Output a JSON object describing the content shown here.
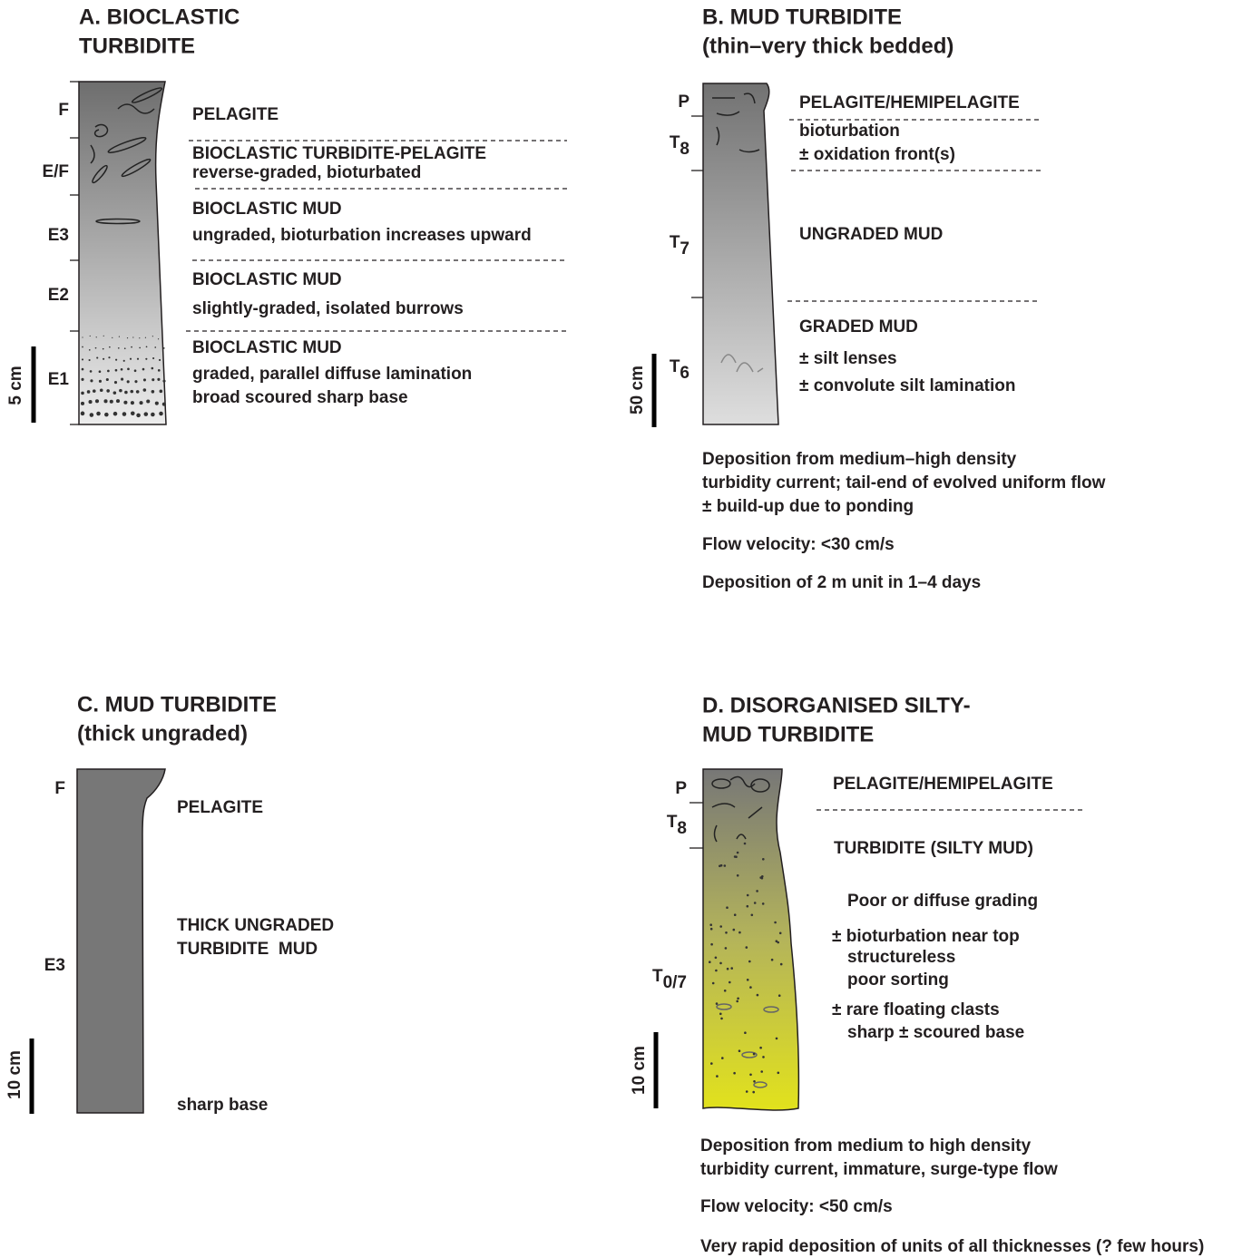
{
  "panels": [
    {
      "title": [
        "A. BIOCLASTIC",
        "TURBIDITE"
      ],
      "beds": [
        {
          "label": "F"
        },
        {
          "label": "E/F"
        },
        {
          "label": "E3"
        },
        {
          "label": "E2"
        },
        {
          "label": "E1"
        }
      ],
      "scale": "5 cm",
      "descriptions": [
        "PELAGITE",
        "BIOCLASTIC TURBIDITE-PELAGITE",
        "reverse-graded, bioturbated",
        "BIOCLASTIC MUD",
        "ungraded, bioturbation increases upward",
        "BIOCLASTIC MUD",
        "slightly-graded, isolated burrows",
        "BIOCLASTIC MUD",
        "graded, parallel diffuse lamination",
        "broad scoured sharp base"
      ]
    },
    {
      "title": [
        "B. MUD TURBIDITE",
        "(thin–very thick bedded)"
      ],
      "beds": [
        {
          "label": "P"
        },
        {
          "label": "T",
          "sub": "8"
        },
        {
          "label": "T",
          "sub": "7"
        },
        {
          "label": "T",
          "sub": "6"
        }
      ],
      "scale": "50 cm",
      "descriptions": [
        "PELAGITE/HEMIPELAGITE",
        "bioturbation",
        "± oxidation front(s)",
        "UNGRADED MUD",
        "GRADED MUD",
        "± silt lenses",
        "± convolute silt lamination"
      ],
      "notes": [
        "Deposition from medium–high density",
        "turbidity current; tail-end of evolved uniform flow",
        "± build-up due to ponding",
        "Flow velocity: <30 cm/s",
        "Deposition of 2 m unit in 1–4 days"
      ]
    },
    {
      "title": [
        "C. MUD TURBIDITE",
        "(thick ungraded)"
      ],
      "beds": [
        {
          "label": "F"
        },
        {
          "label": "E3"
        }
      ],
      "scale": "10 cm",
      "descriptions": [
        "PELAGITE",
        "THICK UNGRADED",
        "TURBIDITE  MUD",
        "sharp base"
      ]
    },
    {
      "title": [
        "D. DISORGANISED SILTY-",
        "MUD TURBIDITE"
      ],
      "beds": [
        {
          "label": "P"
        },
        {
          "label": "T",
          "sub": "8"
        },
        {
          "label": "T",
          "sub": "0/7"
        }
      ],
      "scale": "10 cm",
      "descriptions": [
        "PELAGITE/HEMIPELAGITE",
        "TURBIDITE (SILTY MUD)",
        "Poor or diffuse grading",
        "± bioturbation near top",
        "structureless",
        "poor sorting",
        "± rare floating clasts",
        "sharp ± scoured base"
      ],
      "notes": [
        "Deposition from medium to high density",
        "turbidity current, immature, surge-type flow",
        "Flow velocity: <50 cm/s",
        "Very rapid deposition of units of all thicknesses (? few hours)"
      ]
    }
  ]
}
